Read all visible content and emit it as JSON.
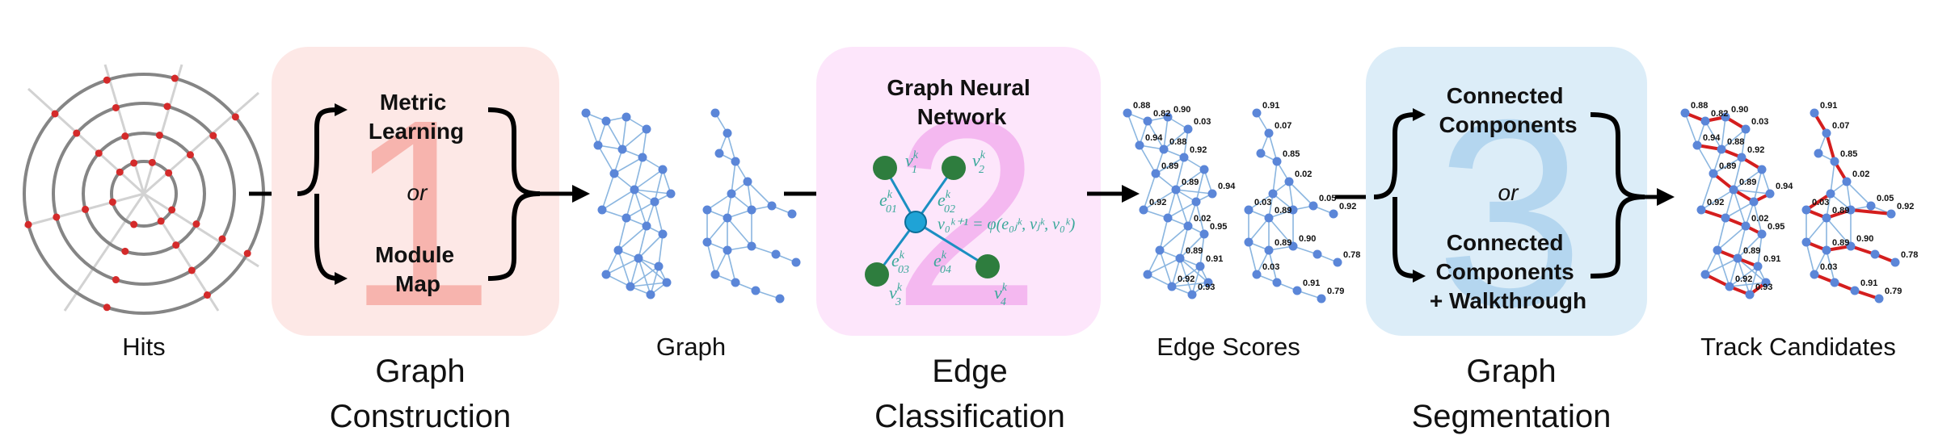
{
  "panels": {
    "hits": {
      "label": "Hits"
    },
    "graph_construction": {
      "number": "1",
      "method_a": [
        "Metric",
        "Learning"
      ],
      "or": "or",
      "method_b": [
        "Module",
        "Map"
      ],
      "title": [
        "Graph",
        "Construction"
      ]
    },
    "graph": {
      "label": "Graph"
    },
    "edge_classification": {
      "number": "2",
      "heading": [
        "Graph Neural",
        "Network"
      ],
      "title": [
        "Edge",
        "Classification"
      ],
      "nodes": {
        "v1": "v",
        "v2": "v",
        "v3": "v",
        "v4": "v",
        "v0": "v"
      },
      "equation": "v₀ᵏ⁺¹ = φ(e₀ⱼᵏ, vⱼᵏ, v₀ᵏ)"
    },
    "edge_scores": {
      "label": "Edge Scores",
      "scores_left": [
        "0.88",
        "0.03",
        "0.92",
        "0.89",
        "0.92",
        "0.95",
        "0.91",
        "0.93",
        "0.07",
        "0.02",
        "0.89",
        "0.92",
        "0.90",
        "0.03",
        "0.79"
      ],
      "scores_right": [
        "0.90",
        "0.88",
        "0.89",
        "0.94",
        "0.02",
        "0.89",
        "0.92",
        "0.91",
        "0.85",
        "0.03",
        "0.05",
        "0.89",
        "0.78",
        "0.91",
        "0.82",
        "0.94"
      ]
    },
    "graph_segmentation": {
      "number": "3",
      "method_a": [
        "Connected",
        "Components"
      ],
      "or": "or",
      "method_b": [
        "Connected",
        "Components",
        "+ Walkthrough"
      ],
      "title": [
        "Graph",
        "Segmentation"
      ]
    },
    "track_candidates": {
      "label": "Track Candidates"
    }
  },
  "colors": {
    "panel1": "#fde8e6",
    "panel1_number": "#f7b4ae",
    "panel2": "#fde6fb",
    "panel2_number": "#f4b8f0",
    "panel3": "#dcedf8",
    "panel3_number": "#b4d6ef",
    "node": "#5b86d8",
    "edge": "#8bb6e0",
    "hit": "#d42a2a",
    "track": "#d41e1e",
    "gnn_node": "#2e7d3e",
    "gnn_center": "#1fa3d6",
    "gnn_text": "#3aa89a"
  }
}
